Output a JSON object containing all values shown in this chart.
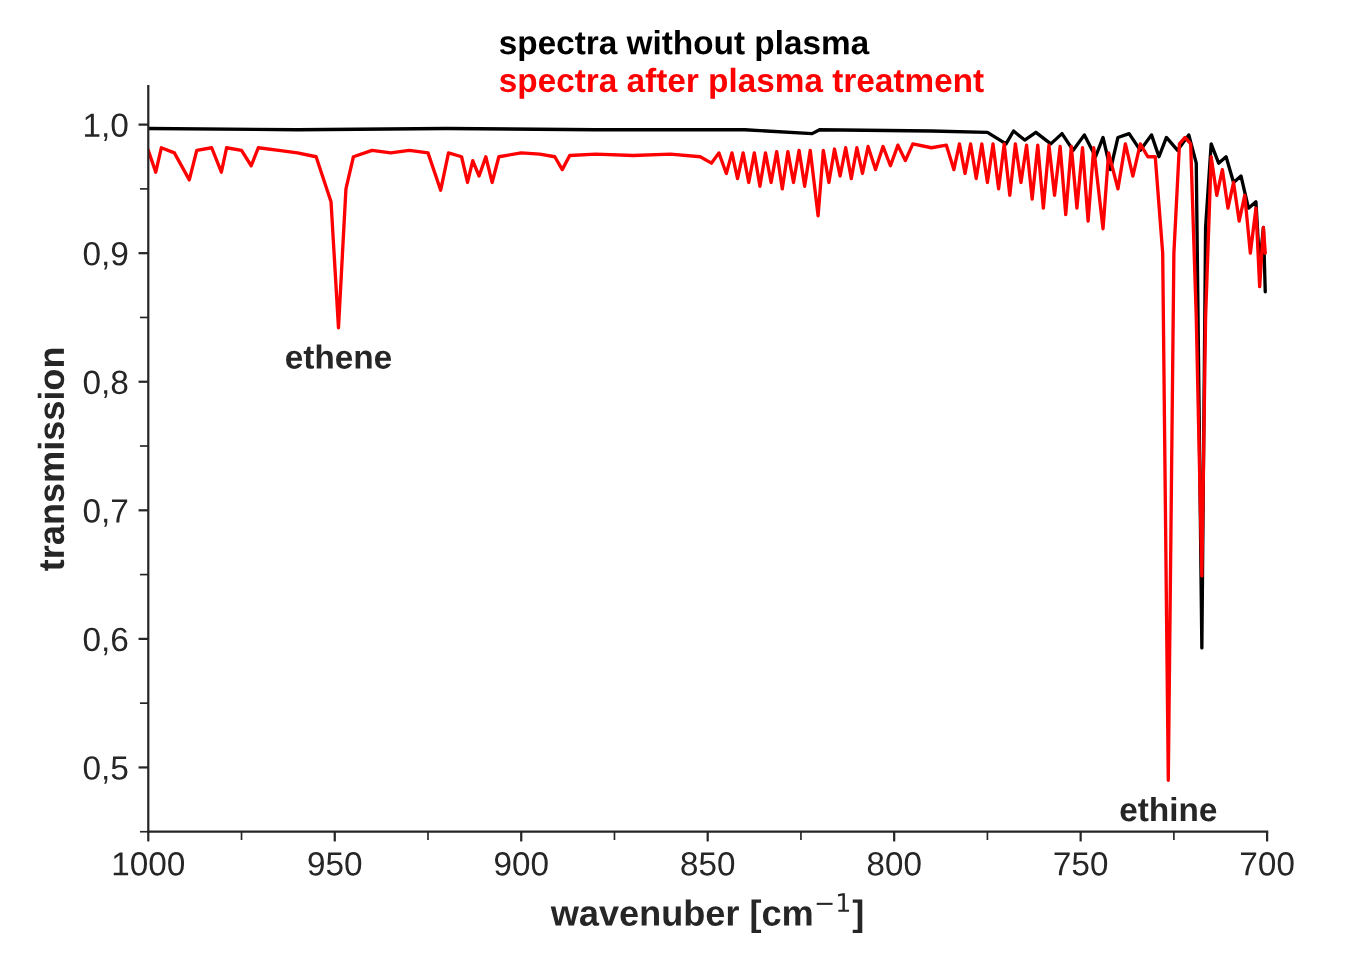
{
  "chart_data": {
    "type": "line",
    "xlabel": "wavenuber [cm$^{−1}$]",
    "ylabel": "transmission",
    "xlim": [
      1000,
      700
    ],
    "xticks": [
      1000,
      950,
      900,
      850,
      800,
      750,
      700
    ],
    "ylim": [
      0.45,
      1.03
    ],
    "yticks": [
      {
        "value": 0.5,
        "label": "0,5"
      },
      {
        "value": 0.6,
        "label": "0,6"
      },
      {
        "value": 0.7,
        "label": "0,7"
      },
      {
        "value": 0.8,
        "label": "0,8"
      },
      {
        "value": 0.9,
        "label": "0,9"
      },
      {
        "value": 1.0,
        "label": "1,0"
      }
    ],
    "grid": false,
    "legend": "top",
    "marker": "none",
    "line_style": "solid",
    "annotations": [
      {
        "text": "ethene",
        "x": 949,
        "y": 0.842
      },
      {
        "text": "ethine",
        "x": 726.5,
        "y": 0.49
      }
    ],
    "series": [
      {
        "name": "spectra without plasma",
        "color": "#000000",
        "x": [
          1000,
          960,
          920,
          880,
          840,
          822,
          820,
          790,
          775,
          770,
          768,
          765,
          762,
          758,
          755,
          752,
          749,
          746,
          744,
          742,
          740,
          737,
          734,
          731,
          729,
          727,
          724,
          721,
          719,
          717.5,
          716.5,
          715,
          713,
          711,
          709,
          707,
          705,
          703,
          702,
          701,
          700.5
        ],
        "values": [
          0.997,
          0.996,
          0.997,
          0.996,
          0.996,
          0.993,
          0.996,
          0.995,
          0.994,
          0.985,
          0.995,
          0.988,
          0.994,
          0.985,
          0.993,
          0.98,
          0.992,
          0.975,
          0.99,
          0.965,
          0.99,
          0.993,
          0.98,
          0.992,
          0.975,
          0.99,
          0.98,
          0.992,
          0.97,
          0.593,
          0.92,
          0.985,
          0.97,
          0.975,
          0.955,
          0.96,
          0.935,
          0.94,
          0.89,
          0.92,
          0.87
        ]
      },
      {
        "name": "spectra after plasma treatment",
        "color": "#ff0000",
        "x": [
          1000,
          998,
          996.5,
          993,
          989,
          987,
          983,
          980.4,
          979,
          975,
          972.4,
          970.5,
          965,
          960,
          955,
          951,
          949,
          947,
          945,
          940,
          935,
          930,
          925,
          921.6,
          919.5,
          916,
          914.4,
          913,
          911.3,
          909.5,
          907.8,
          906,
          900,
          895,
          891,
          889,
          887,
          880,
          870,
          860,
          852,
          849,
          847,
          845,
          843.5,
          842,
          840.5,
          839,
          837.5,
          836,
          834.5,
          833,
          831.5,
          830,
          828.5,
          827,
          825.5,
          824,
          822.5,
          820.4,
          819,
          817.5,
          816,
          814.5,
          813,
          811.5,
          810,
          808.5,
          807,
          805,
          803,
          801,
          799,
          797,
          795,
          790,
          786,
          784,
          782.5,
          781,
          779.5,
          778,
          776.5,
          775,
          773.5,
          772,
          770.5,
          769,
          767.5,
          766,
          764.5,
          763,
          761.5,
          760,
          758.5,
          757,
          755.5,
          754,
          752.5,
          751,
          749.5,
          748,
          746.5,
          744,
          742.5,
          740,
          738,
          736,
          734,
          732,
          730,
          728,
          726.5,
          725,
          723.5,
          722,
          720.5,
          719,
          717.5,
          716.5,
          715,
          713.5,
          712,
          710.5,
          709,
          707.5,
          706,
          704.5,
          703,
          702,
          701,
          700.5
        ],
        "values": [
          0.98,
          0.963,
          0.982,
          0.978,
          0.957,
          0.98,
          0.982,
          0.963,
          0.982,
          0.98,
          0.968,
          0.982,
          0.98,
          0.978,
          0.975,
          0.94,
          0.842,
          0.95,
          0.975,
          0.98,
          0.978,
          0.98,
          0.978,
          0.949,
          0.978,
          0.975,
          0.955,
          0.972,
          0.96,
          0.975,
          0.955,
          0.975,
          0.978,
          0.977,
          0.975,
          0.965,
          0.976,
          0.977,
          0.976,
          0.977,
          0.975,
          0.97,
          0.978,
          0.962,
          0.978,
          0.958,
          0.978,
          0.955,
          0.978,
          0.952,
          0.978,
          0.955,
          0.979,
          0.95,
          0.979,
          0.955,
          0.98,
          0.952,
          0.98,
          0.929,
          0.98,
          0.955,
          0.981,
          0.96,
          0.982,
          0.958,
          0.982,
          0.962,
          0.983,
          0.965,
          0.983,
          0.968,
          0.984,
          0.972,
          0.985,
          0.982,
          0.984,
          0.965,
          0.985,
          0.962,
          0.985,
          0.958,
          0.985,
          0.955,
          0.985,
          0.95,
          0.985,
          0.945,
          0.985,
          0.955,
          0.984,
          0.942,
          0.984,
          0.935,
          0.984,
          0.945,
          0.983,
          0.93,
          0.983,
          0.935,
          0.982,
          0.925,
          0.982,
          0.919,
          0.978,
          0.95,
          0.985,
          0.96,
          0.985,
          0.975,
          0.975,
          0.9,
          0.49,
          0.9,
          0.985,
          0.99,
          0.985,
          0.85,
          0.649,
          0.85,
          0.975,
          0.945,
          0.965,
          0.935,
          0.955,
          0.925,
          0.945,
          0.9,
          0.935,
          0.874,
          0.92,
          0.9
        ]
      }
    ]
  }
}
